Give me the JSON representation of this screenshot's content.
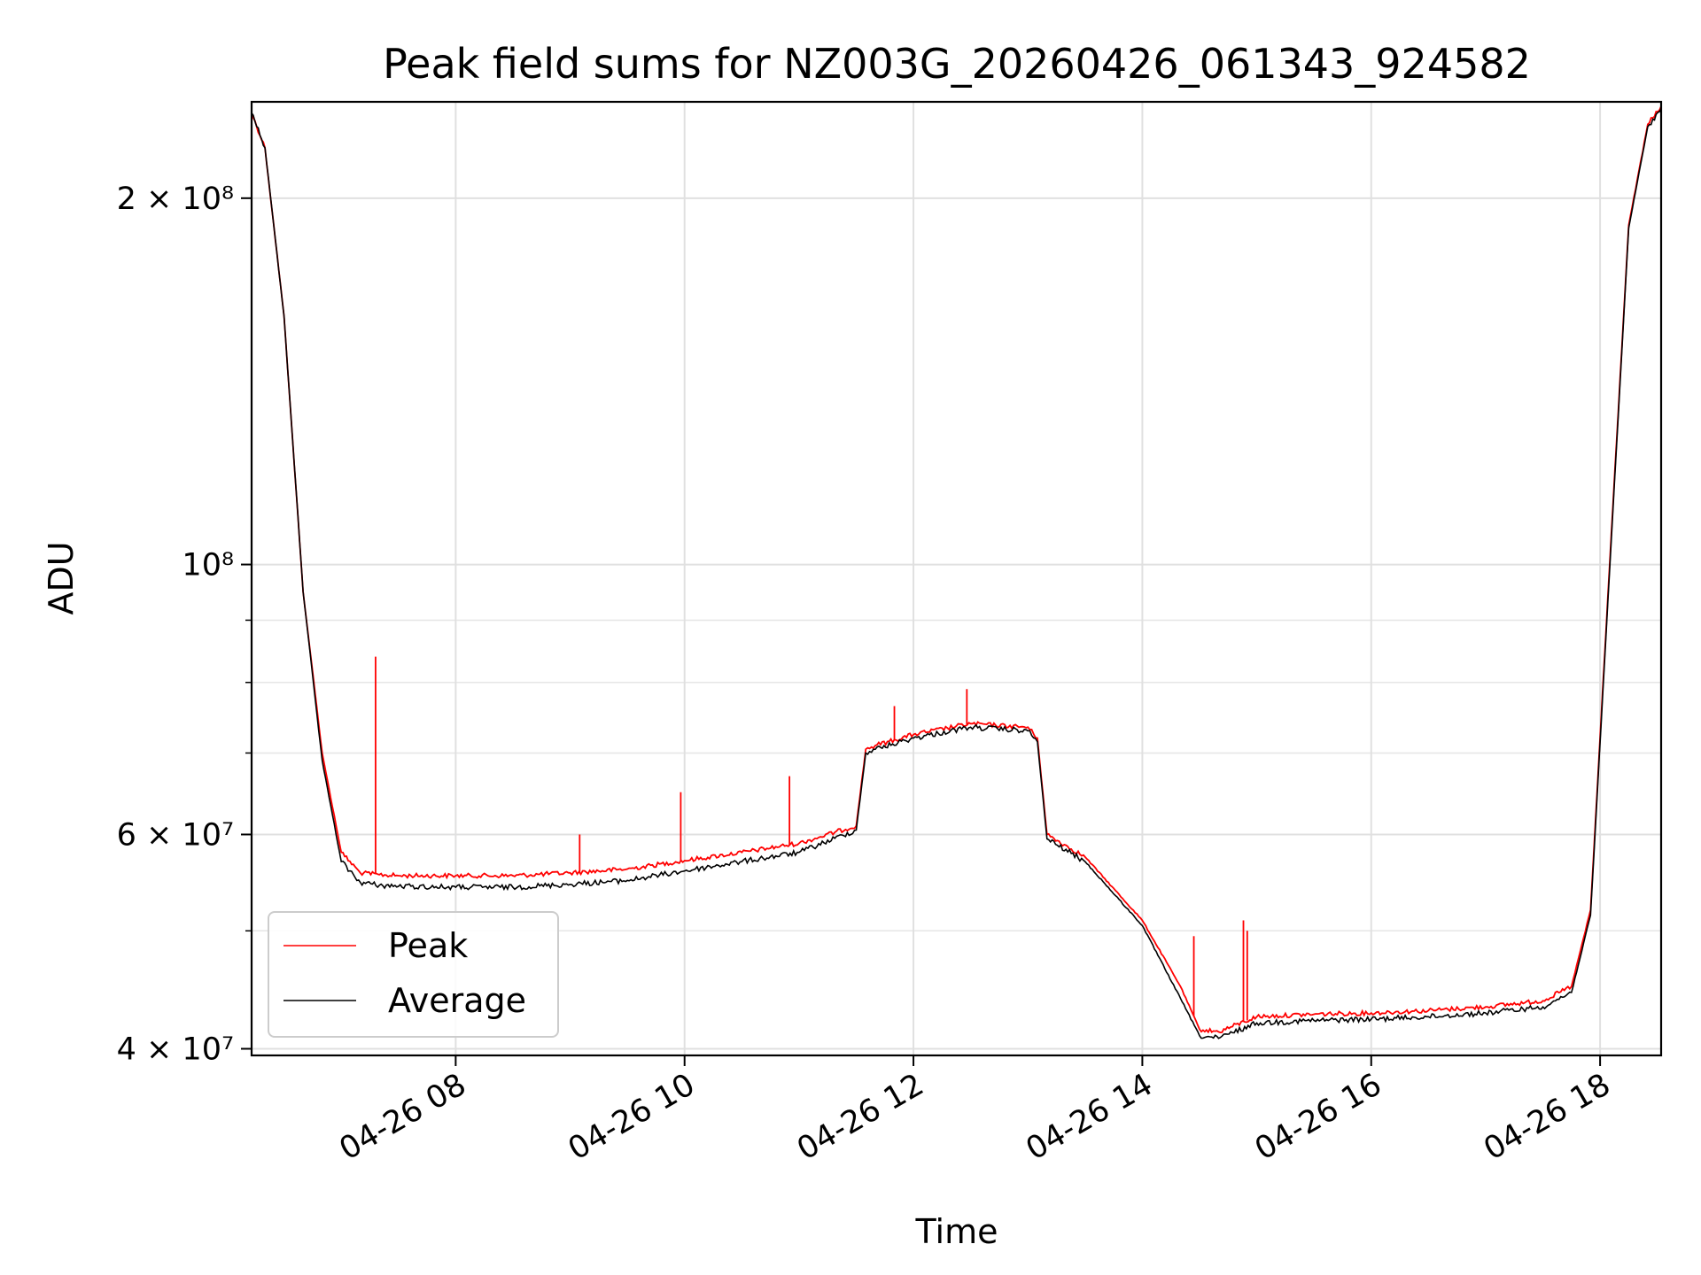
{
  "chart_data": {
    "type": "line",
    "title": "Peak field sums for NZ003G_20260426_061343_924582",
    "xlabel": "Time",
    "ylabel": "ADU",
    "yscale": "log",
    "grid": true,
    "legend_position": "lower-left",
    "xlim": [
      "2026-04-26 06:13",
      "2026-04-26 18:32"
    ],
    "ylim": [
      39500000,
      240000000
    ],
    "x_ticks": [
      {
        "x": "2026-04-26 08:00",
        "label": "04-26 08"
      },
      {
        "x": "2026-04-26 10:00",
        "label": "04-26 10"
      },
      {
        "x": "2026-04-26 12:00",
        "label": "04-26 12"
      },
      {
        "x": "2026-04-26 14:00",
        "label": "04-26 14"
      },
      {
        "x": "2026-04-26 16:00",
        "label": "04-26 16"
      },
      {
        "x": "2026-04-26 18:00",
        "label": "04-26 18"
      }
    ],
    "y_ticks": [
      {
        "y": 40000000,
        "label": "4 × 10⁷"
      },
      {
        "y": 60000000,
        "label": "6 × 10⁷"
      },
      {
        "y": 100000000,
        "label": "10⁸"
      },
      {
        "y": 200000000,
        "label": "2 × 10⁸"
      }
    ],
    "y_minor_ticks": [
      50000000,
      70000000,
      80000000,
      90000000
    ],
    "series": [
      {
        "name": "Peak",
        "color": "#ff0000",
        "x": [
          "2026-04-26 06:13",
          "2026-04-26 06:20",
          "2026-04-26 06:30",
          "2026-04-26 06:40",
          "2026-04-26 06:50",
          "2026-04-26 07:00",
          "2026-04-26 07:10",
          "2026-04-26 07:20",
          "2026-04-26 07:30",
          "2026-04-26 08:00",
          "2026-04-26 08:30",
          "2026-04-26 09:00",
          "2026-04-26 09:30",
          "2026-04-26 10:00",
          "2026-04-26 10:30",
          "2026-04-26 11:00",
          "2026-04-26 11:30",
          "2026-04-26 11:35",
          "2026-04-26 11:40",
          "2026-04-26 12:00",
          "2026-04-26 12:30",
          "2026-04-26 13:00",
          "2026-04-26 13:05",
          "2026-04-26 13:10",
          "2026-04-26 13:30",
          "2026-04-26 14:00",
          "2026-04-26 14:20",
          "2026-04-26 14:30",
          "2026-04-26 14:40",
          "2026-04-26 15:00",
          "2026-04-26 15:30",
          "2026-04-26 16:00",
          "2026-04-26 16:30",
          "2026-04-26 17:00",
          "2026-04-26 17:30",
          "2026-04-26 17:45",
          "2026-04-26 17:55",
          "2026-04-26 18:05",
          "2026-04-26 18:15",
          "2026-04-26 18:25",
          "2026-04-26 18:32"
        ],
        "y": [
          235000000,
          220000000,
          160000000,
          95000000,
          70000000,
          58000000,
          55800000,
          55600000,
          55500000,
          55500000,
          55500000,
          55800000,
          56200000,
          57100000,
          58000000,
          59000000,
          61000000,
          70500000,
          71000000,
          72500000,
          74000000,
          73500000,
          72000000,
          60000000,
          57500000,
          51000000,
          45000000,
          41500000,
          41300000,
          42500000,
          42700000,
          42800000,
          43000000,
          43300000,
          43800000,
          45000000,
          52000000,
          100000000,
          190000000,
          230000000,
          238000000
        ]
      },
      {
        "name": "Average",
        "color": "#000000",
        "x": [
          "2026-04-26 06:13",
          "2026-04-26 06:20",
          "2026-04-26 06:30",
          "2026-04-26 06:40",
          "2026-04-26 06:50",
          "2026-04-26 07:00",
          "2026-04-26 07:10",
          "2026-04-26 07:20",
          "2026-04-26 07:30",
          "2026-04-26 08:00",
          "2026-04-26 08:30",
          "2026-04-26 09:00",
          "2026-04-26 09:30",
          "2026-04-26 10:00",
          "2026-04-26 10:30",
          "2026-04-26 11:00",
          "2026-04-26 11:30",
          "2026-04-26 11:35",
          "2026-04-26 11:40",
          "2026-04-26 12:00",
          "2026-04-26 12:30",
          "2026-04-26 13:00",
          "2026-04-26 13:05",
          "2026-04-26 13:10",
          "2026-04-26 13:30",
          "2026-04-26 14:00",
          "2026-04-26 14:20",
          "2026-04-26 14:30",
          "2026-04-26 14:40",
          "2026-04-26 15:00",
          "2026-04-26 15:30",
          "2026-04-26 16:00",
          "2026-04-26 16:30",
          "2026-04-26 17:00",
          "2026-04-26 17:30",
          "2026-04-26 17:45",
          "2026-04-26 17:55",
          "2026-04-26 18:05",
          "2026-04-26 18:15",
          "2026-04-26 18:25",
          "2026-04-26 18:32"
        ],
        "y": [
          235000000,
          220000000,
          160000000,
          95000000,
          69000000,
          57000000,
          54800000,
          54500000,
          54400000,
          54300000,
          54300000,
          54600000,
          55000000,
          56000000,
          57000000,
          58000000,
          60500000,
          70000000,
          70500000,
          72000000,
          73500000,
          73000000,
          71500000,
          59500000,
          57000000,
          50500000,
          44000000,
          41000000,
          40800000,
          42000000,
          42200000,
          42300000,
          42500000,
          42800000,
          43300000,
          44500000,
          51500000,
          99000000,
          189000000,
          229000000,
          237000000
        ]
      }
    ],
    "peak_spikes": [
      {
        "x": "2026-04-26 07:18",
        "y": 84000000
      },
      {
        "x": "2026-04-26 09:05",
        "y": 60000000
      },
      {
        "x": "2026-04-26 09:58",
        "y": 65000000
      },
      {
        "x": "2026-04-26 10:55",
        "y": 67000000
      },
      {
        "x": "2026-04-26 11:50",
        "y": 76500000
      },
      {
        "x": "2026-04-26 12:28",
        "y": 79000000
      },
      {
        "x": "2026-04-26 14:27",
        "y": 49500000
      },
      {
        "x": "2026-04-26 14:53",
        "y": 51000000
      },
      {
        "x": "2026-04-26 14:55",
        "y": 50000000
      }
    ]
  }
}
